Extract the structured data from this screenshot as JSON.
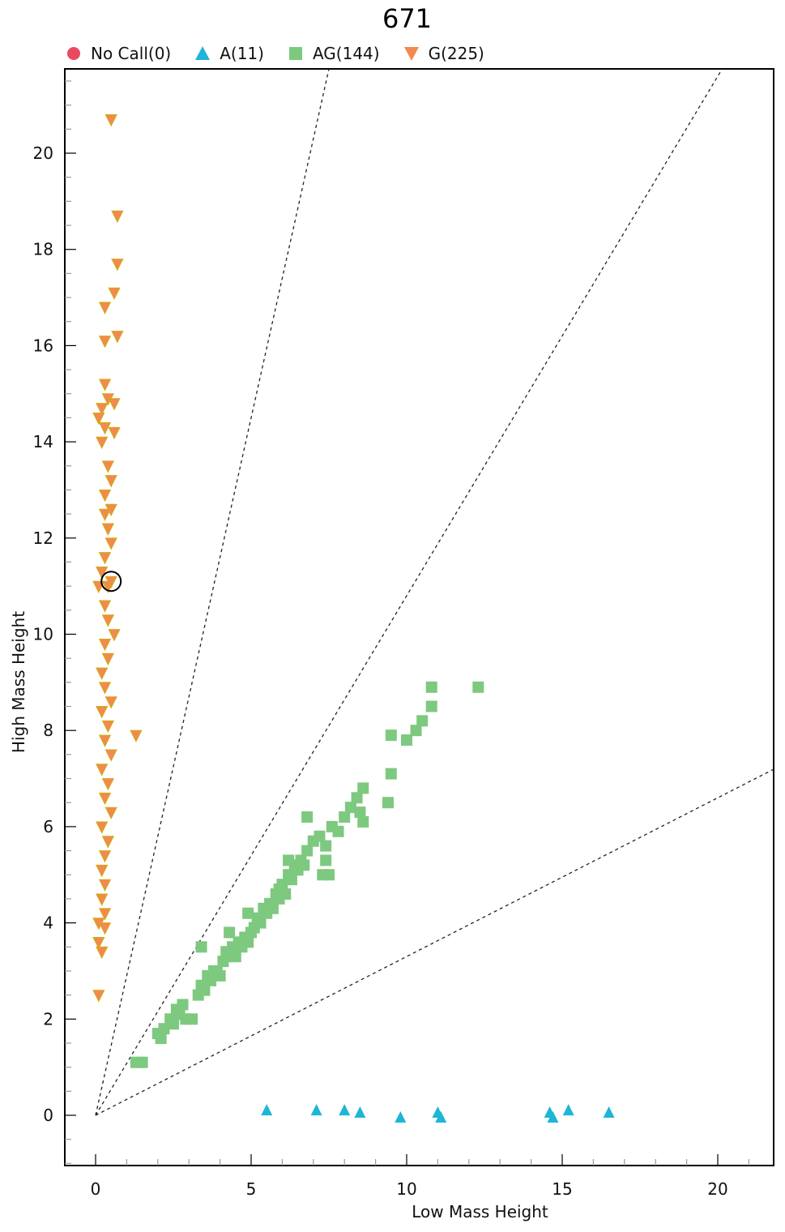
{
  "title": "671",
  "legend": [
    {
      "label": "No Call(0)",
      "marker": "circle",
      "color": "#e84a5f"
    },
    {
      "label": "A(11)",
      "marker": "triangle-up",
      "color": "#1fb5d6"
    },
    {
      "label": "AG(144)",
      "marker": "square",
      "color": "#7dc97f"
    },
    {
      "label": "G(225)",
      "marker": "triangle-down",
      "color": "#f28a4f"
    }
  ],
  "chart_data": {
    "type": "scatter",
    "title": "671",
    "xlabel": "Low Mass Height",
    "ylabel": "High Mass Height",
    "xlim": [
      -1,
      21.8
    ],
    "ylim": [
      -1.1,
      21.9
    ],
    "x_ticks": [
      0,
      5,
      10,
      15,
      20
    ],
    "y_ticks": [
      0,
      2,
      4,
      6,
      8,
      10,
      12,
      14,
      16,
      18,
      20
    ],
    "grid": false,
    "legend_position": "top",
    "cluster_boundaries": [
      {
        "slope": 2.9
      },
      {
        "slope": 1.08
      },
      {
        "slope": 0.33
      }
    ],
    "highlighted_point": {
      "x": 0.5,
      "y": 11.1
    },
    "series": [
      {
        "name": "No Call(0)",
        "marker": "circle",
        "color": "#e84a5f",
        "points": []
      },
      {
        "name": "A(11)",
        "marker": "triangle-up",
        "color": "#1fb5d6",
        "points": [
          [
            5.5,
            0.1
          ],
          [
            7.1,
            0.1
          ],
          [
            8.0,
            0.1
          ],
          [
            8.5,
            0.05
          ],
          [
            9.8,
            -0.05
          ],
          [
            11.0,
            0.05
          ],
          [
            11.1,
            -0.05
          ],
          [
            14.6,
            0.05
          ],
          [
            14.7,
            -0.05
          ],
          [
            15.2,
            0.1
          ],
          [
            16.5,
            0.05
          ]
        ]
      },
      {
        "name": "AG(144)",
        "marker": "square",
        "color": "#7dc97f",
        "points": [
          [
            1.3,
            1.1
          ],
          [
            1.5,
            1.1
          ],
          [
            2.0,
            1.7
          ],
          [
            2.1,
            1.6
          ],
          [
            2.2,
            1.8
          ],
          [
            2.4,
            2.0
          ],
          [
            2.5,
            1.9
          ],
          [
            2.6,
            2.2
          ],
          [
            2.7,
            2.1
          ],
          [
            2.8,
            2.3
          ],
          [
            2.9,
            2.0
          ],
          [
            3.1,
            2.0
          ],
          [
            3.3,
            2.5
          ],
          [
            3.4,
            2.7
          ],
          [
            3.5,
            2.6
          ],
          [
            3.6,
            2.9
          ],
          [
            3.7,
            2.8
          ],
          [
            3.8,
            3.0
          ],
          [
            3.9,
            3.0
          ],
          [
            4.0,
            2.9
          ],
          [
            4.1,
            3.2
          ],
          [
            4.2,
            3.4
          ],
          [
            4.3,
            3.3
          ],
          [
            4.4,
            3.5
          ],
          [
            4.5,
            3.3
          ],
          [
            4.6,
            3.6
          ],
          [
            4.7,
            3.5
          ],
          [
            4.8,
            3.7
          ],
          [
            4.9,
            3.6
          ],
          [
            5.0,
            3.8
          ],
          [
            5.1,
            3.9
          ],
          [
            5.2,
            4.1
          ],
          [
            5.3,
            4.0
          ],
          [
            5.4,
            4.3
          ],
          [
            5.5,
            4.2
          ],
          [
            5.6,
            4.4
          ],
          [
            5.7,
            4.3
          ],
          [
            5.8,
            4.6
          ],
          [
            5.9,
            4.5
          ],
          [
            6.0,
            4.8
          ],
          [
            6.1,
            4.6
          ],
          [
            6.2,
            5.0
          ],
          [
            6.3,
            4.9
          ],
          [
            6.4,
            5.2
          ],
          [
            6.5,
            5.1
          ],
          [
            6.6,
            5.3
          ],
          [
            6.7,
            5.2
          ],
          [
            6.8,
            5.5
          ],
          [
            7.0,
            5.7
          ],
          [
            7.2,
            5.8
          ],
          [
            7.4,
            5.6
          ],
          [
            7.6,
            6.0
          ],
          [
            7.8,
            5.9
          ],
          [
            8.0,
            6.2
          ],
          [
            8.2,
            6.4
          ],
          [
            8.4,
            6.6
          ],
          [
            8.5,
            6.3
          ],
          [
            8.6,
            6.8
          ],
          [
            3.4,
            3.5
          ],
          [
            4.3,
            3.8
          ],
          [
            4.9,
            4.2
          ],
          [
            5.9,
            4.7
          ],
          [
            6.2,
            5.3
          ],
          [
            6.8,
            6.2
          ],
          [
            7.3,
            5.0
          ],
          [
            7.5,
            5.0
          ],
          [
            7.4,
            5.3
          ],
          [
            8.6,
            6.1
          ],
          [
            9.4,
            6.5
          ],
          [
            9.5,
            7.1
          ],
          [
            9.5,
            7.9
          ],
          [
            10.0,
            7.8
          ],
          [
            10.3,
            8.0
          ],
          [
            10.5,
            8.2
          ],
          [
            10.8,
            8.5
          ],
          [
            10.8,
            8.9
          ],
          [
            12.3,
            8.9
          ]
        ]
      },
      {
        "name": "G(225)",
        "marker": "triangle-down",
        "color": "#f28a4f",
        "points": [
          [
            0.5,
            20.7
          ],
          [
            0.7,
            18.7
          ],
          [
            0.7,
            17.7
          ],
          [
            0.6,
            17.1
          ],
          [
            0.3,
            16.8
          ],
          [
            0.7,
            16.2
          ],
          [
            0.3,
            16.1
          ],
          [
            0.3,
            15.2
          ],
          [
            0.4,
            14.9
          ],
          [
            0.6,
            14.8
          ],
          [
            0.2,
            14.7
          ],
          [
            0.1,
            14.5
          ],
          [
            0.3,
            14.3
          ],
          [
            0.6,
            14.2
          ],
          [
            0.2,
            14.0
          ],
          [
            0.4,
            13.5
          ],
          [
            0.5,
            13.2
          ],
          [
            0.3,
            12.9
          ],
          [
            0.5,
            12.6
          ],
          [
            0.3,
            12.5
          ],
          [
            0.4,
            12.2
          ],
          [
            0.5,
            11.9
          ],
          [
            0.3,
            11.6
          ],
          [
            0.2,
            11.3
          ],
          [
            0.1,
            11.0
          ],
          [
            0.4,
            11.0
          ],
          [
            0.5,
            11.1
          ],
          [
            0.3,
            10.6
          ],
          [
            0.4,
            10.3
          ],
          [
            0.6,
            10.0
          ],
          [
            0.3,
            9.8
          ],
          [
            0.4,
            9.5
          ],
          [
            0.2,
            9.2
          ],
          [
            0.3,
            8.9
          ],
          [
            0.5,
            8.6
          ],
          [
            0.2,
            8.4
          ],
          [
            0.4,
            8.1
          ],
          [
            0.3,
            7.8
          ],
          [
            0.5,
            7.5
          ],
          [
            1.3,
            7.9
          ],
          [
            0.2,
            7.2
          ],
          [
            0.4,
            6.9
          ],
          [
            0.3,
            6.6
          ],
          [
            0.5,
            6.3
          ],
          [
            0.2,
            6.0
          ],
          [
            0.4,
            5.7
          ],
          [
            0.3,
            5.4
          ],
          [
            0.2,
            5.1
          ],
          [
            0.3,
            4.8
          ],
          [
            0.2,
            4.5
          ],
          [
            0.3,
            4.2
          ],
          [
            0.1,
            4.0
          ],
          [
            0.3,
            3.9
          ],
          [
            0.1,
            3.6
          ],
          [
            0.2,
            3.4
          ],
          [
            0.1,
            2.5
          ]
        ]
      }
    ]
  }
}
